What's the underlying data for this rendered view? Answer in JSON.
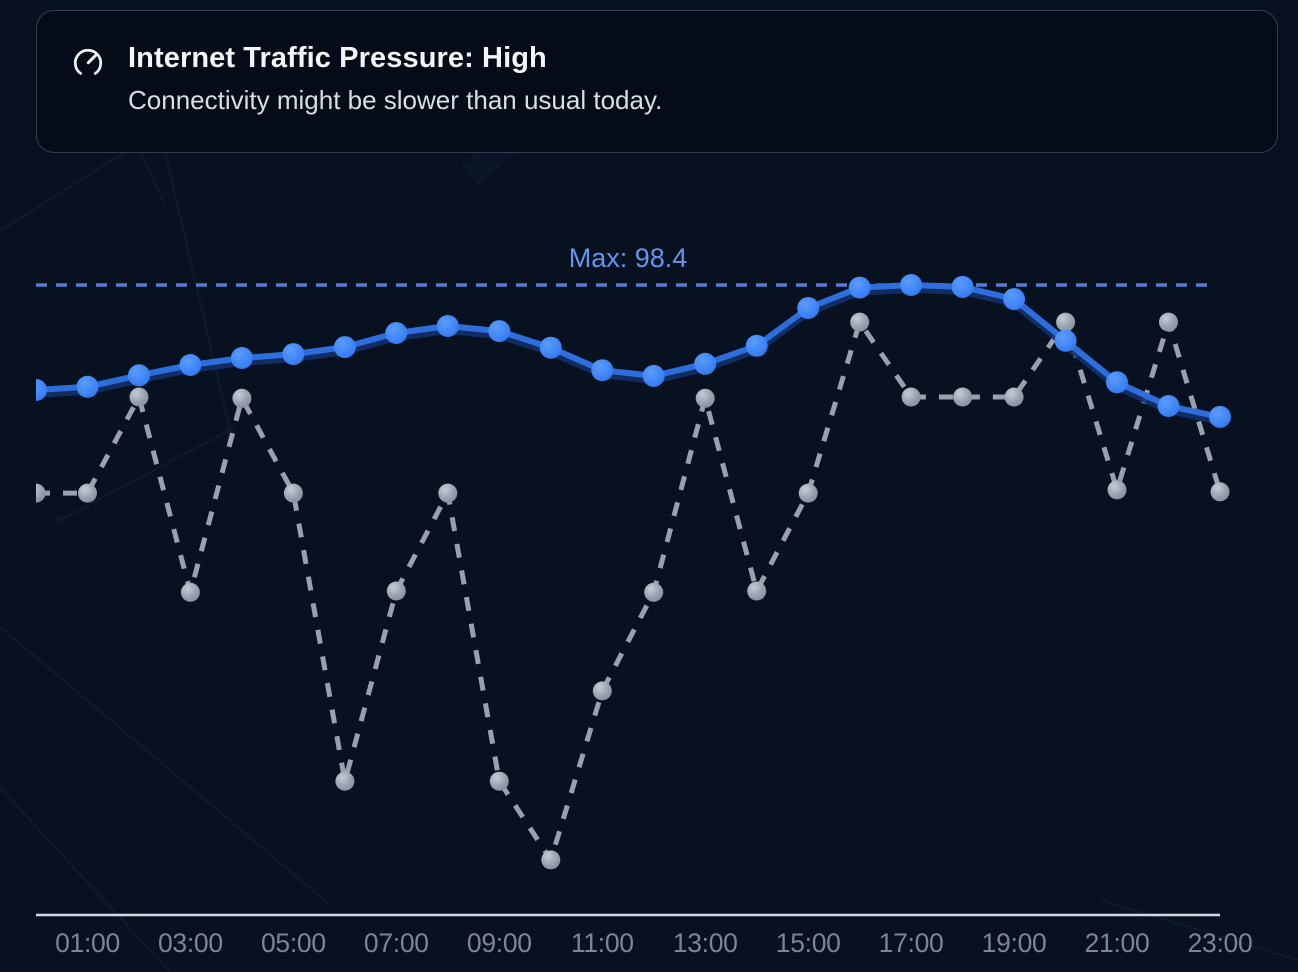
{
  "header": {
    "icon": "gauge-icon",
    "title": "Internet Traffic Pressure: High",
    "subtitle": "Connectivity might be slower than usual today."
  },
  "chart_data": {
    "type": "line",
    "title": "",
    "xlabel": "",
    "ylabel": "",
    "x_unit": "time of day, one point per hour",
    "x_range": [
      "00:00",
      "23:00"
    ],
    "x_tick_labels": [
      "01:00",
      "03:00",
      "05:00",
      "07:00",
      "09:00",
      "11:00",
      "13:00",
      "15:00",
      "17:00",
      "19:00",
      "21:00",
      "23:00"
    ],
    "max_line": {
      "label": "Max: 98.4",
      "value": 98.4,
      "line_color": "#5d87ea",
      "label_color": "#6495f0"
    },
    "series": [
      {
        "id": "traffic-pressure-solid-blue",
        "style": "solid",
        "line_color": "#2e6ddc",
        "dot_color": "#3c83f6",
        "values": [
          82.0,
          82.5,
          84.3,
          85.9,
          87.0,
          87.6,
          88.7,
          90.9,
          92.0,
          91.2,
          88.6,
          85.1,
          84.2,
          86.1,
          88.9,
          94.8,
          98.0,
          98.4,
          98.1,
          96.2,
          89.7,
          83.2,
          79.5,
          77.8
        ]
      },
      {
        "id": "secondary-dashed-gray",
        "style": "dashed",
        "line_color": "#98a1ae",
        "dot_color": "#9aa3b0",
        "values": [
          65.9,
          65.9,
          80.9,
          50.4,
          80.7,
          65.9,
          20.9,
          50.6,
          65.9,
          20.9,
          8.6,
          35.0,
          50.4,
          80.7,
          50.6,
          65.9,
          92.6,
          80.9,
          80.9,
          80.9,
          92.6,
          66.4,
          92.6,
          66.1
        ]
      }
    ],
    "y_axis": {
      "min": 0,
      "max_marked": 98.4,
      "gridlines": false
    },
    "legend": "none",
    "axis": {
      "line_color": "#dfe5ee",
      "label_color": "#7c8593"
    }
  }
}
